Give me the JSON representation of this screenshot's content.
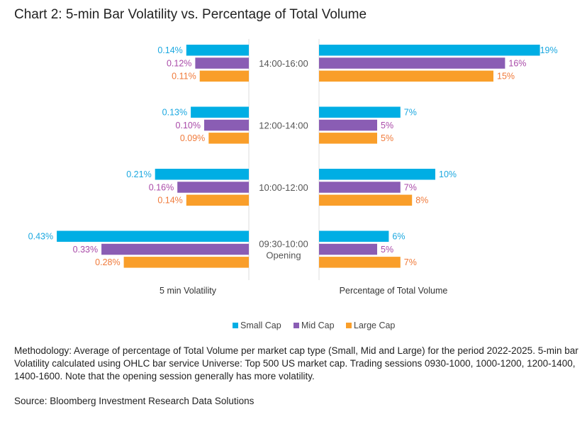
{
  "title": "Chart 2: 5-min Bar Volatility vs. Percentage of Total Volume",
  "chart_data": {
    "type": "bar",
    "orientation": "horizontal-butterfly",
    "categories": [
      "14:00-16:00",
      "12:00-14:00",
      "10:00-12:00",
      "09:30-10:00\nOpening"
    ],
    "panels": [
      {
        "xlabel": "5 min Volatility",
        "unit": "%",
        "direction": "left",
        "series": [
          {
            "name": "Small Cap",
            "values": [
              0.14,
              0.13,
              0.21,
              0.43
            ],
            "labels": [
              "0.14%",
              "0.13%",
              "0.21%",
              "0.43%"
            ]
          },
          {
            "name": "Mid Cap",
            "values": [
              0.12,
              0.1,
              0.16,
              0.33
            ],
            "labels": [
              "0.12%",
              "0.10%",
              "0.16%",
              "0.33%"
            ]
          },
          {
            "name": "Large Cap",
            "values": [
              0.11,
              0.09,
              0.14,
              0.28
            ],
            "labels": [
              "0.11%",
              "0.09%",
              "0.14%",
              "0.28%"
            ]
          }
        ]
      },
      {
        "xlabel": "Percentage of Total Volume",
        "unit": "%",
        "direction": "right",
        "series": [
          {
            "name": "Small Cap",
            "values": [
              19,
              7,
              10,
              6
            ],
            "labels": [
              "19%",
              "7%",
              "10%",
              "6%"
            ]
          },
          {
            "name": "Mid Cap",
            "values": [
              16,
              5,
              7,
              5
            ],
            "labels": [
              "16%",
              "5%",
              "7%",
              "5%"
            ]
          },
          {
            "name": "Large Cap",
            "values": [
              15,
              5,
              8,
              7
            ],
            "labels": [
              "15%",
              "5%",
              "8%",
              "7%"
            ]
          }
        ]
      }
    ],
    "legend": {
      "position": "bottom",
      "items": [
        "Small Cap",
        "Mid Cap",
        "Large Cap"
      ]
    },
    "colors": {
      "bars": [
        "#00AEE4",
        "#8A5DB4",
        "#F99E2A"
      ],
      "labels": [
        "#1BA8E0",
        "#A94AA8",
        "#F07A3A"
      ]
    },
    "grid": false
  },
  "methodology": "Methodology: Average of percentage of Total Volume per market cap type (Small, Mid and Large) for the period 2022-2025. 5-min bar Volatility calculated using OHLC bar service Universe: Top 500 US market cap. Trading sessions 0930-1000, 1000-1200, 1200-1400, 1400-1600. Note that the opening session generally has more volatility.",
  "source": "Source: Bloomberg Investment Research Data Solutions"
}
